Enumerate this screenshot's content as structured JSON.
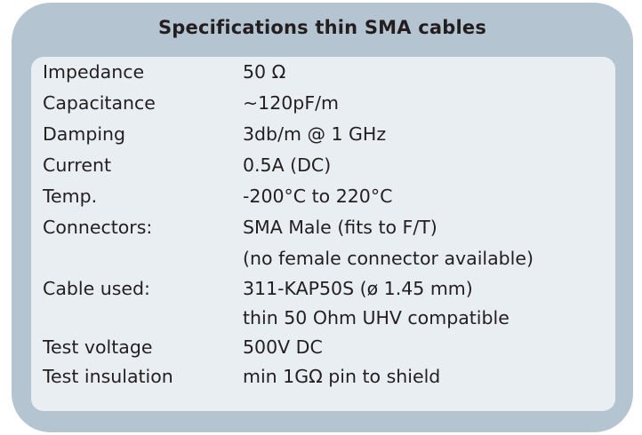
{
  "title": "Specifications  thin SMA cables",
  "colors": {
    "frame": "#b5c4d1",
    "panel": "#e9eef2",
    "text": "#231f20"
  },
  "rows": [
    {
      "label": "Impedance",
      "value": "50 Ω"
    },
    {
      "label": "Capacitance",
      "value": "~120pF/m"
    },
    {
      "label": "Damping",
      "value": "3db/m @ 1 GHz"
    },
    {
      "label": "Current",
      "value": "0.5A (DC)"
    },
    {
      "label": "Temp.",
      "value": "-200°C to 220°C"
    },
    {
      "label": "Connectors:",
      "value": "SMA Male (fits to F/T)"
    },
    {
      "label": "",
      "value": "(no female connector available)"
    },
    {
      "label": "Cable used:",
      "value": "311-KAP50S (ø 1.45 mm)"
    },
    {
      "label": "",
      "value": "thin 50 Ohm UHV compatible"
    },
    {
      "label": "Test voltage",
      "value": "500V DC"
    },
    {
      "label": "Test insulation",
      "value": "min 1GΩ pin to shield"
    }
  ]
}
